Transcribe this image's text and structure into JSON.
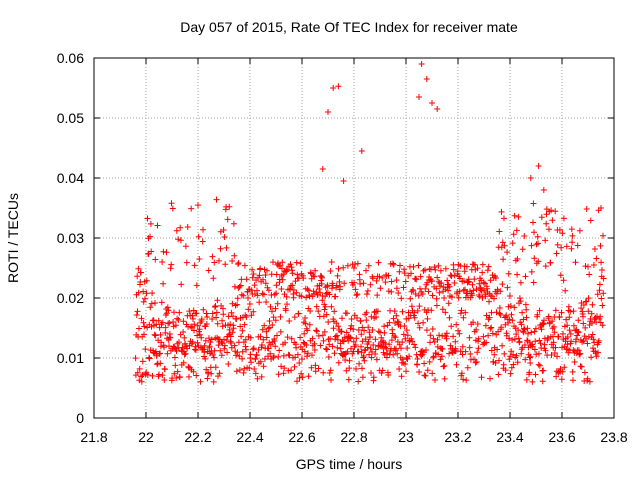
{
  "chart_data": {
    "type": "scatter",
    "title": "Day 057 of 2015, Rate Of TEC Index for receiver mate",
    "xlabel": "GPS time / hours",
    "ylabel": "ROTI / TECUs",
    "xlim": [
      21.8,
      23.8
    ],
    "ylim": [
      0,
      0.06
    ],
    "xticks": [
      21.8,
      22,
      22.2,
      22.4,
      22.6,
      22.8,
      23,
      23.2,
      23.4,
      23.6,
      23.8
    ],
    "xtick_labels": [
      "21.8",
      "22",
      "22.2",
      "22.4",
      "22.6",
      "22.8",
      "23",
      "23.2",
      "23.4",
      "23.6",
      "23.8"
    ],
    "yticks": [
      0,
      0.01,
      0.02,
      0.03,
      0.04,
      0.05,
      0.06
    ],
    "ytick_labels": [
      "0",
      "0.01",
      "0.02",
      "0.03",
      "0.04",
      "0.05",
      "0.06"
    ],
    "grid": true,
    "marker": "+",
    "color": "#ff0000",
    "series": [
      {
        "name": "ROTI",
        "x_range": [
          21.96,
          23.76
        ],
        "num_points": 1500,
        "notable_points": [
          {
            "x": 22.68,
            "y": 0.0415
          },
          {
            "x": 22.7,
            "y": 0.051
          },
          {
            "x": 22.72,
            "y": 0.055
          },
          {
            "x": 22.74,
            "y": 0.0553
          },
          {
            "x": 22.76,
            "y": 0.0395
          },
          {
            "x": 22.8,
            "y": 0.025
          },
          {
            "x": 22.83,
            "y": 0.0445
          },
          {
            "x": 23.05,
            "y": 0.0535
          },
          {
            "x": 23.06,
            "y": 0.059
          },
          {
            "x": 23.08,
            "y": 0.0565
          },
          {
            "x": 23.1,
            "y": 0.0525
          },
          {
            "x": 23.12,
            "y": 0.0515
          },
          {
            "x": 23.48,
            "y": 0.04
          },
          {
            "x": 23.51,
            "y": 0.042
          },
          {
            "x": 23.53,
            "y": 0.038
          },
          {
            "x": 23.75,
            "y": 0.035
          }
        ]
      }
    ]
  }
}
